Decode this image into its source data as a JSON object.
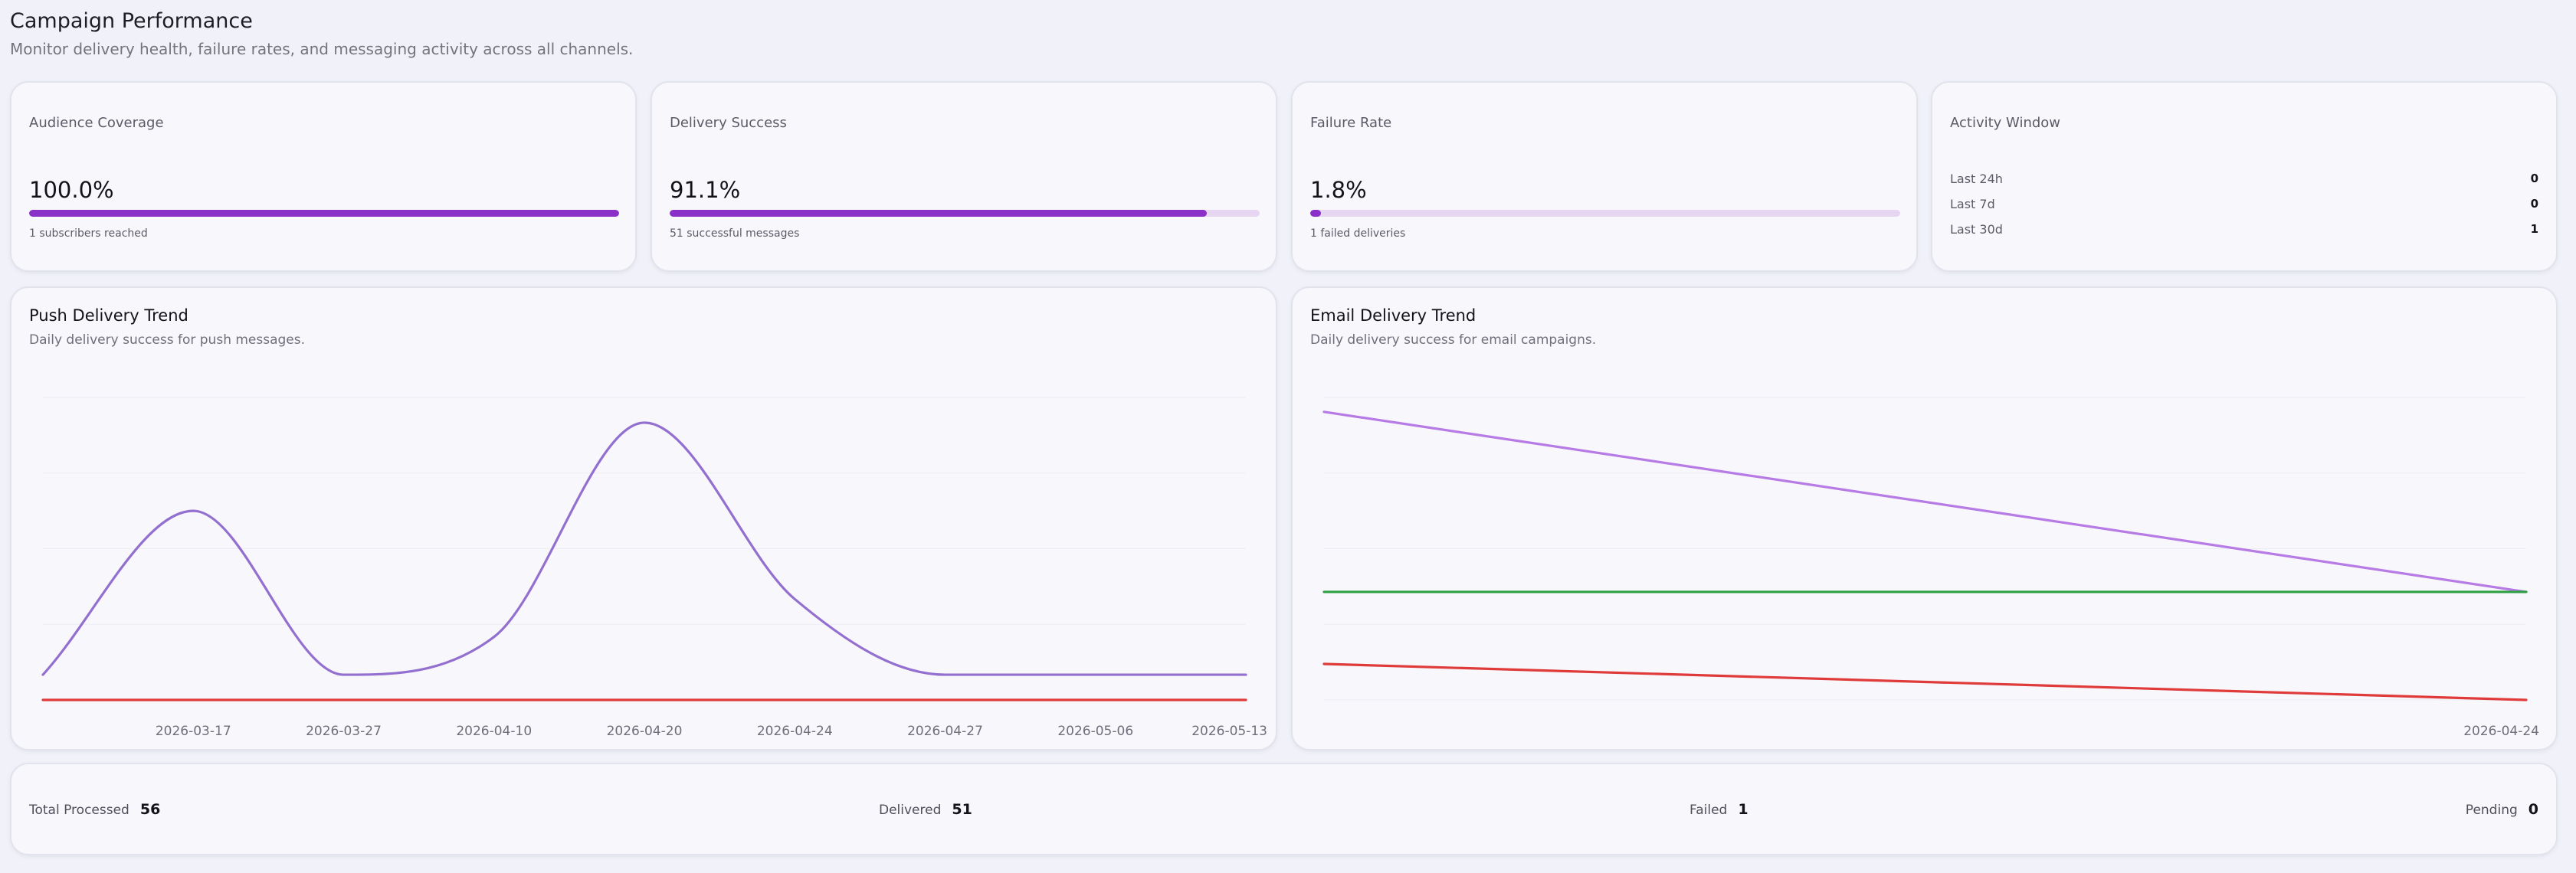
{
  "header": {
    "title": "Campaign Performance",
    "subtitle": "Monitor delivery health, failure rates, and messaging activity across all channels."
  },
  "kpis": {
    "coverage": {
      "label": "Audience Coverage",
      "value": "100.0%",
      "progress": 1.0,
      "note": "1 subscribers reached"
    },
    "success": {
      "label": "Delivery Success",
      "value": "91.1%",
      "progress": 0.911,
      "note": "51 successful messages"
    },
    "failure": {
      "label": "Failure Rate",
      "value": "1.8%",
      "progress": 0.018,
      "note": "1 failed deliveries"
    }
  },
  "activity": {
    "label": "Activity Window",
    "rows": [
      {
        "label": "Last 24h",
        "value": "0"
      },
      {
        "label": "Last 7d",
        "value": "0"
      },
      {
        "label": "Last 30d",
        "value": "1"
      }
    ]
  },
  "push_chart": {
    "title": "Push Delivery Trend",
    "subtitle": "Daily delivery success for push messages."
  },
  "email_chart": {
    "title": "Email Delivery Trend",
    "subtitle": "Daily delivery success for email campaigns."
  },
  "summary": {
    "total_label": "Total Processed",
    "total_value": "56",
    "delivered_label": "Delivered",
    "delivered_value": "51",
    "failed_label": "Failed",
    "failed_value": "1",
    "pending_label": "Pending",
    "pending_value": "0"
  },
  "colors": {
    "accent": "#8b2fc9",
    "track": "#e6d6f2",
    "push_line": "#9370cf",
    "email_line": "#b77be6",
    "success_line": "#2ea043",
    "failure_line": "#e03b3b"
  },
  "chart_data": [
    {
      "type": "line",
      "title": "Push Delivery Trend",
      "subtitle": "Daily delivery success for push messages.",
      "x": [
        "",
        "2026-03-17",
        "2026-03-27",
        "2026-04-10",
        "2026-04-20",
        "2026-04-24",
        "2026-04-27",
        "2026-05-06",
        "2026-05-13"
      ],
      "ylim": [
        0,
        12
      ],
      "grid": true,
      "series": [
        {
          "values": [
            1,
            7.5,
            1,
            2.5,
            11,
            4,
            1,
            1,
            1
          ],
          "color": "#9370cf"
        },
        {
          "values": [
            0,
            0,
            0,
            0,
            0,
            0,
            0,
            0,
            0
          ],
          "color": "#e03b3b"
        }
      ]
    },
    {
      "type": "line",
      "title": "Email Delivery Trend",
      "subtitle": "Daily delivery success for email campaigns.",
      "x": [
        "",
        "2026-04-24"
      ],
      "ylim": [
        0,
        4.2
      ],
      "grid": true,
      "series": [
        {
          "values": [
            4,
            1.5
          ],
          "color": "#b77be6"
        },
        {
          "values": [
            1.5,
            1.5
          ],
          "color": "#2ea043"
        },
        {
          "values": [
            0.5,
            0
          ],
          "color": "#e03b3b"
        }
      ]
    }
  ]
}
